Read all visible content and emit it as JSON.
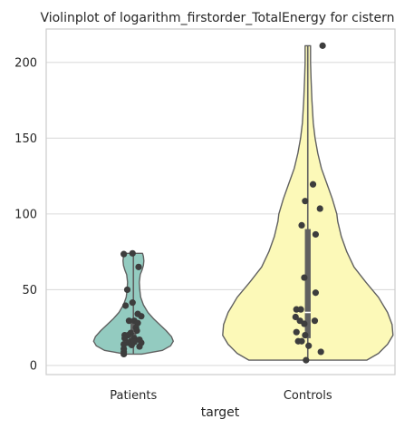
{
  "chart_data": {
    "type": "violin",
    "title": "Violinplot of logarithm_firstorder_TotalEnergy for cistern",
    "xlabel": "target",
    "ylabel": "",
    "ylim": [
      -6,
      222
    ],
    "yticks": [
      "0",
      "50",
      "100",
      "150",
      "200"
    ],
    "grid": true,
    "categories": [
      "Patients",
      "Controls"
    ],
    "series": [
      {
        "category": "Patients",
        "color": "#93cbc0",
        "range": [
          7.5,
          74
        ],
        "quartiles": [
          15,
          22,
          30
        ],
        "density": [
          [
            7.5,
            9
          ],
          [
            8.5,
            18
          ],
          [
            10,
            32
          ],
          [
            13,
            41
          ],
          [
            16,
            44
          ],
          [
            19,
            42
          ],
          [
            23,
            36
          ],
          [
            27,
            29
          ],
          [
            31,
            22
          ],
          [
            35,
            16
          ],
          [
            40,
            11
          ],
          [
            45,
            8
          ],
          [
            50,
            7
          ],
          [
            55,
            6.5
          ],
          [
            60,
            7.5
          ],
          [
            63,
            9.5
          ],
          [
            66,
            11
          ],
          [
            69,
            11.5
          ],
          [
            72,
            11
          ],
          [
            74,
            10
          ]
        ],
        "points": [
          [
            -0.055,
            73.5
          ],
          [
            -0.005,
            74
          ],
          [
            0.03,
            65
          ],
          [
            -0.035,
            50
          ],
          [
            -0.045,
            39.5
          ],
          [
            -0.005,
            41.5
          ],
          [
            0.025,
            34
          ],
          [
            0.045,
            32.5
          ],
          [
            -0.025,
            29.5
          ],
          [
            0.005,
            29.5
          ],
          [
            0.025,
            28
          ],
          [
            0.015,
            25
          ],
          [
            0.02,
            23
          ],
          [
            -0.015,
            21.5
          ],
          [
            -0.05,
            20
          ],
          [
            -0.03,
            20
          ],
          [
            -0.05,
            18
          ],
          [
            0.005,
            18
          ],
          [
            0.035,
            17
          ],
          [
            -0.015,
            16
          ],
          [
            0.005,
            15.5
          ],
          [
            0.045,
            15
          ],
          [
            -0.03,
            15
          ],
          [
            -0.055,
            14
          ],
          [
            -0.01,
            13.5
          ],
          [
            0.035,
            12.5
          ],
          [
            -0.055,
            11
          ],
          [
            -0.055,
            9
          ],
          [
            -0.055,
            7.5
          ]
        ]
      },
      {
        "category": "Controls",
        "color": "#fcf9b8",
        "range": [
          3.5,
          211
        ],
        "quartiles": [
          18,
          35,
          90
        ],
        "density": [
          [
            3.5,
            65
          ],
          [
            8,
            78
          ],
          [
            14,
            88
          ],
          [
            20,
            94
          ],
          [
            27,
            93
          ],
          [
            35,
            88
          ],
          [
            45,
            78
          ],
          [
            55,
            64
          ],
          [
            65,
            51
          ],
          [
            75,
            43
          ],
          [
            85,
            37
          ],
          [
            95,
            33
          ],
          [
            100,
            32
          ],
          [
            110,
            27
          ],
          [
            120,
            21
          ],
          [
            130,
            15
          ],
          [
            140,
            11
          ],
          [
            150,
            8
          ],
          [
            160,
            6
          ],
          [
            175,
            4.5
          ],
          [
            190,
            3.5
          ],
          [
            200,
            3
          ],
          [
            211,
            3
          ]
        ],
        "points": [
          [
            0.085,
            211
          ],
          [
            0.03,
            119.5
          ],
          [
            -0.015,
            108.5
          ],
          [
            0.07,
            103.5
          ],
          [
            -0.035,
            92.5
          ],
          [
            0.045,
            86.5
          ],
          [
            -0.02,
            58
          ],
          [
            0.045,
            48
          ],
          [
            -0.065,
            37
          ],
          [
            -0.04,
            37
          ],
          [
            -0.07,
            32
          ],
          [
            -0.045,
            29.5
          ],
          [
            0.04,
            29.5
          ],
          [
            -0.02,
            27.5
          ],
          [
            -0.065,
            22
          ],
          [
            -0.015,
            20
          ],
          [
            -0.035,
            16
          ],
          [
            -0.055,
            16
          ],
          [
            0.005,
            13
          ],
          [
            0.075,
            9
          ],
          [
            -0.01,
            3.5
          ]
        ]
      }
    ]
  }
}
